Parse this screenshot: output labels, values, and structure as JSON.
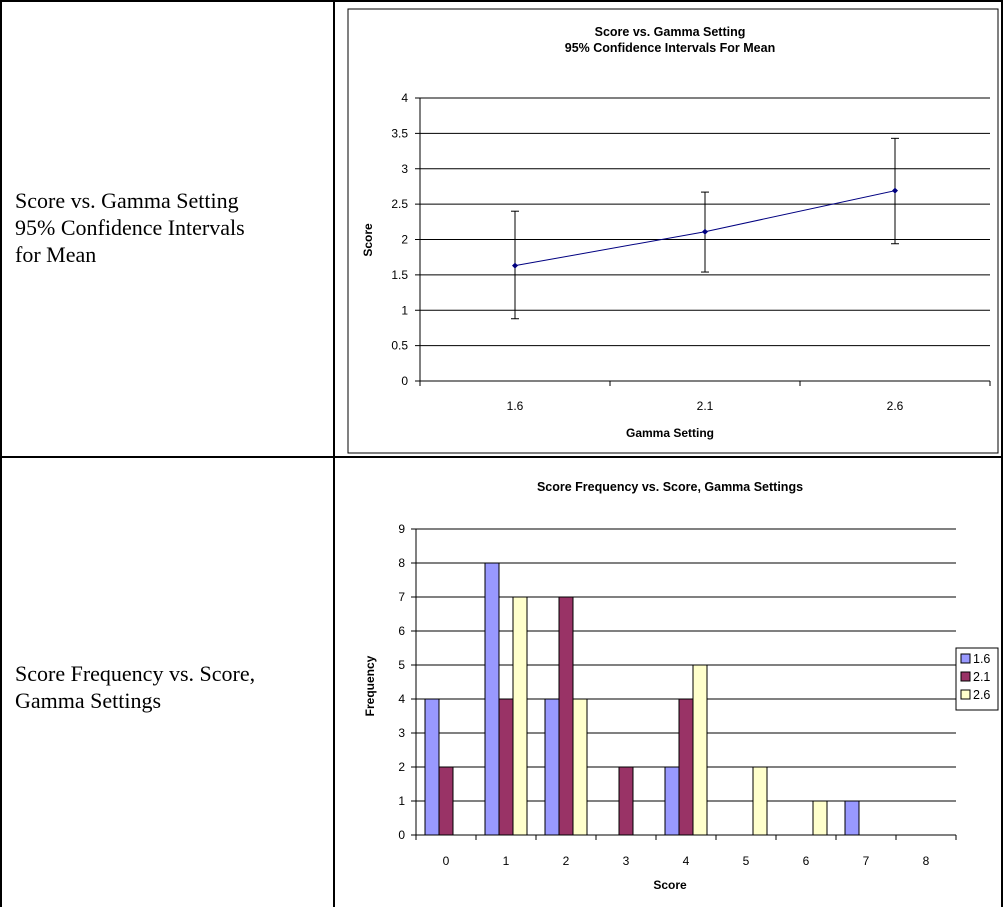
{
  "rows": [
    {
      "label_line1": "Score vs. Gamma Setting",
      "label_line2": "95% Confidence Intervals",
      "label_line3": "for Mean"
    },
    {
      "label_line1": "Score Frequency vs. Score,",
      "label_line2": "Gamma Settings"
    }
  ],
  "chart_data": [
    {
      "type": "line",
      "title": "Score vs. Gamma Setting",
      "subtitle": "95% Confidence Intervals For Mean",
      "xlabel": "Gamma Setting",
      "ylabel": "Score",
      "categories": [
        "1.6",
        "2.1",
        "2.6"
      ],
      "series": [
        {
          "values": [
            1.63,
            2.11,
            2.69
          ],
          "ci_low": [
            0.88,
            1.54,
            1.94
          ],
          "ci_high": [
            2.4,
            2.67,
            3.43
          ]
        }
      ],
      "ylim": [
        0,
        4
      ],
      "yticks": [
        "0",
        "0.5",
        "1",
        "1.5",
        "2",
        "2.5",
        "3",
        "3.5",
        "4"
      ],
      "grid": true,
      "line_color": "#000080"
    },
    {
      "type": "bar",
      "title": "Score Frequency vs. Score, Gamma Settings",
      "xlabel": "Score",
      "ylabel": "Frequency",
      "categories": [
        "0",
        "1",
        "2",
        "3",
        "4",
        "5",
        "6",
        "7",
        "8"
      ],
      "series": [
        {
          "name": "1.6",
          "color": "#9999FF",
          "values": [
            4,
            8,
            4,
            0,
            2,
            0,
            0,
            1,
            0
          ]
        },
        {
          "name": "2.1",
          "color": "#993366",
          "values": [
            2,
            4,
            7,
            2,
            4,
            0,
            0,
            0,
            0
          ]
        },
        {
          "name": "2.6",
          "color": "#FFFFCC",
          "values": [
            0,
            7,
            4,
            0,
            5,
            2,
            1,
            0,
            0
          ]
        }
      ],
      "ylim": [
        0,
        9
      ],
      "yticks": [
        "0",
        "1",
        "2",
        "3",
        "4",
        "5",
        "6",
        "7",
        "8",
        "9"
      ],
      "grid": true,
      "legend": "right"
    }
  ]
}
